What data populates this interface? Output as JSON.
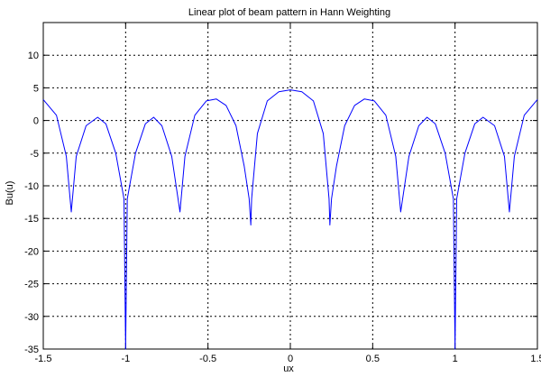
{
  "chart_data": {
    "type": "line",
    "title": "Linear plot of beam pattern in Hann Weighting",
    "xlabel": "ux",
    "ylabel": "Bu(u)",
    "xlim": [
      -1.5,
      1.5
    ],
    "ylim": [
      -35,
      15
    ],
    "xticks": [
      -1.5,
      -1,
      -0.5,
      0,
      0.5,
      1,
      1.5
    ],
    "xtick_labels": [
      "-1.5",
      "-1",
      "-0.5",
      "0",
      "0.5",
      "1",
      "1.5"
    ],
    "yticks": [
      -35,
      -30,
      -25,
      -20,
      -15,
      -10,
      -5,
      0,
      5,
      10
    ],
    "ytick_labels": [
      "-35",
      "-30",
      "-25",
      "-20",
      "-15",
      "-10",
      "-5",
      "0",
      "5",
      "10"
    ],
    "grid": true,
    "grid_style": "dotted",
    "series": [
      {
        "color": "#0000ff",
        "x": [
          -1.5,
          -1.42,
          -1.36,
          -1.33,
          -1.3,
          -1.24,
          -1.17,
          -1.12,
          -1.06,
          -1.01,
          -1.0,
          -0.99,
          -0.94,
          -0.88,
          -0.83,
          -0.78,
          -0.72,
          -0.67,
          -0.64,
          -0.58,
          -0.51,
          -0.45,
          -0.39,
          -0.33,
          -0.28,
          -0.25,
          -0.24,
          -0.235,
          -0.2,
          -0.14,
          -0.07,
          0.0,
          0.07,
          0.14,
          0.2,
          0.235,
          0.24,
          0.25,
          0.28,
          0.33,
          0.39,
          0.45,
          0.51,
          0.58,
          0.64,
          0.67,
          0.72,
          0.78,
          0.83,
          0.88,
          0.94,
          0.99,
          1.0,
          1.01,
          1.06,
          1.12,
          1.17,
          1.24,
          1.3,
          1.33,
          1.36,
          1.42,
          1.5
        ],
        "y": [
          3.2,
          0.8,
          -5.5,
          -14.0,
          -5.5,
          -0.8,
          0.5,
          -0.5,
          -5.0,
          -12.0,
          -35.0,
          -12.0,
          -5.0,
          -0.5,
          0.5,
          -0.8,
          -5.5,
          -14.0,
          -5.5,
          0.8,
          3.0,
          3.3,
          2.3,
          -0.8,
          -7.0,
          -12.0,
          -16.0,
          -12.0,
          -2.0,
          3.0,
          4.4,
          4.7,
          4.4,
          3.0,
          -2.0,
          -12.0,
          -16.0,
          -12.0,
          -7.0,
          -0.8,
          2.3,
          3.3,
          3.0,
          0.8,
          -5.5,
          -14.0,
          -5.5,
          -0.8,
          0.5,
          -0.5,
          -5.0,
          -12.0,
          -35.0,
          -12.0,
          -5.0,
          -0.5,
          0.5,
          -0.8,
          -5.5,
          -14.0,
          -5.5,
          0.8,
          3.2
        ]
      }
    ]
  }
}
